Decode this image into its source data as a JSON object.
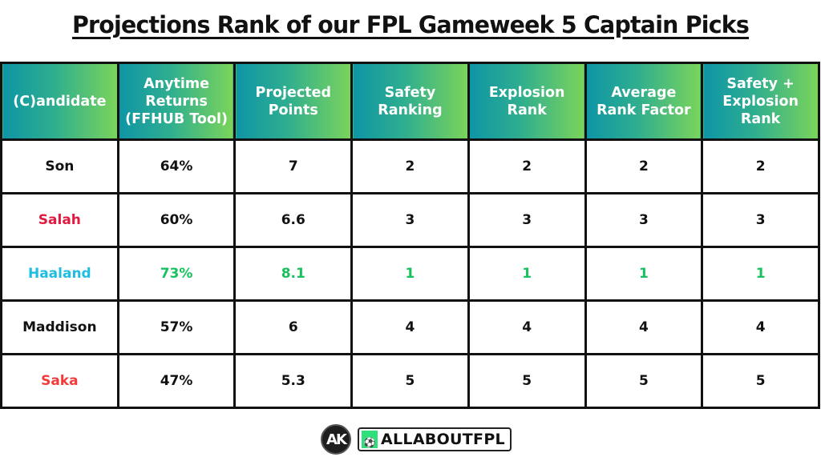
{
  "title": "Projections Rank of our FPL Gameweek 5 Captain Picks",
  "table": {
    "headers": [
      [
        "(C)andidate"
      ],
      [
        "Anytime",
        "Returns",
        "(FFHUB Tool)"
      ],
      [
        "Projected",
        "Points"
      ],
      [
        "Safety",
        "Ranking"
      ],
      [
        "Explosion",
        "Rank"
      ],
      [
        "Average",
        "Rank Factor"
      ],
      [
        "Safety +",
        "Explosion",
        "Rank"
      ]
    ],
    "header_labels": [
      "(C)andidate",
      "Anytime Returns (FFHUB Tool)",
      "Projected Points",
      "Safety Ranking",
      "Explosion Rank",
      "Average Rank Factor",
      "Safety + Explosion Rank"
    ],
    "rows": [
      {
        "name": "Son",
        "name_color": "#111111",
        "value_color": "#111111",
        "anytime": "64%",
        "projected": "7",
        "safety": "2",
        "explosion": "2",
        "average": "2",
        "combined": "2"
      },
      {
        "name": "Salah",
        "name_color": "#e0193f",
        "value_color": "#111111",
        "anytime": "60%",
        "projected": "6.6",
        "safety": "3",
        "explosion": "3",
        "average": "3",
        "combined": "3"
      },
      {
        "name": "Haaland",
        "name_color": "#1fbde0",
        "value_color": "#17c15e",
        "anytime": "73%",
        "projected": "8.1",
        "safety": "1",
        "explosion": "1",
        "average": "1",
        "combined": "1"
      },
      {
        "name": "Maddison",
        "name_color": "#111111",
        "value_color": "#111111",
        "anytime": "57%",
        "projected": "6",
        "safety": "4",
        "explosion": "4",
        "average": "4",
        "combined": "4"
      },
      {
        "name": "Saka",
        "name_color": "#f23a3a",
        "value_color": "#111111",
        "anytime": "47%",
        "projected": "5.3",
        "safety": "5",
        "explosion": "5",
        "average": "5",
        "combined": "5"
      }
    ]
  },
  "colors": {
    "header_gradient_start": "#0e95a6",
    "header_gradient_end": "#7bd45a",
    "header_text": "#ffffff",
    "border": "#111111",
    "best_highlight": "#17c15e"
  },
  "footer": {
    "logo_mark": "AK",
    "brand_icon": "boot-ball-icon",
    "brand_name": "ALLABOUTFPL"
  }
}
